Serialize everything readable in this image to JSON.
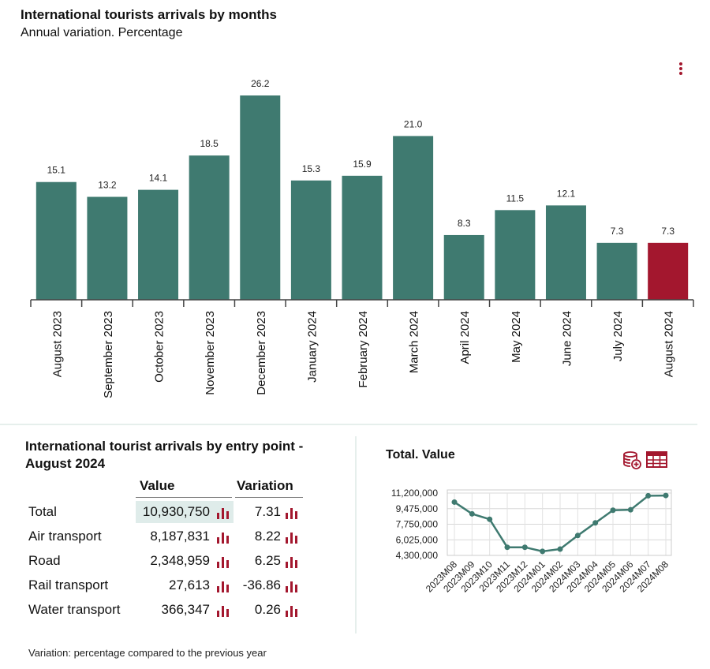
{
  "bar_section": {
    "title": "International tourists arrivals by months",
    "subtitle": "Annual variation. Percentage",
    "menu_icon": "vertical-dots-icon"
  },
  "table_section": {
    "title": "International tourist arrivals by entry point - August 2024",
    "col_value": "Value",
    "col_variation": "Variation",
    "rows": [
      {
        "label": "Total",
        "value": "10,930,750",
        "variation": "7.31"
      },
      {
        "label": "Air transport",
        "value": "8,187,831",
        "variation": "8.22"
      },
      {
        "label": "Road",
        "value": "2,348,959",
        "variation": "6.25"
      },
      {
        "label": "Rail transport",
        "value": "27,613",
        "variation": "-36.86"
      },
      {
        "label": "Water transport",
        "value": "366,347",
        "variation": "0.26"
      }
    ],
    "row_icon": "mini-bar-chart-icon",
    "footnote": "Variation: percentage compared to the previous year"
  },
  "line_section": {
    "title": "Total. Value",
    "icons": [
      "database-add-icon",
      "table-icon"
    ]
  },
  "colors": {
    "bar": "#3f7a70",
    "bar_highlight": "#a3172e",
    "line": "#3f7a70",
    "icon": "#a3172e",
    "axis": "#444444"
  },
  "chart_data": [
    {
      "type": "bar",
      "title": "International tourists arrivals by months",
      "subtitle": "Annual variation. Percentage",
      "categories": [
        "August 2023",
        "September 2023",
        "October 2023",
        "November 2023",
        "December 2023",
        "January 2024",
        "February 2024",
        "March 2024",
        "April 2024",
        "May 2024",
        "June 2024",
        "July 2024",
        "August 2024"
      ],
      "values": [
        15.1,
        13.2,
        14.1,
        18.5,
        26.2,
        15.3,
        15.9,
        21.0,
        8.3,
        11.5,
        12.1,
        7.3,
        7.3
      ],
      "labels": [
        "15.1",
        "13.2",
        "14.1",
        "18.5",
        "26.2",
        "15.3",
        "15.9",
        "21.0",
        "8.3",
        "11.5",
        "12.1",
        "7.3",
        "7.3"
      ],
      "highlight_index": 12,
      "ylim": [
        0,
        26.2
      ]
    },
    {
      "type": "line",
      "title": "Total. Value",
      "x": [
        "2023M08",
        "2023M09",
        "2023M10",
        "2023M11",
        "2023M12",
        "2024M01",
        "2024M02",
        "2024M03",
        "2024M04",
        "2024M05",
        "2024M06",
        "2024M07",
        "2024M08"
      ],
      "values": [
        10200000,
        8900000,
        8300000,
        5200000,
        5200000,
        4750000,
        5000000,
        6500000,
        7900000,
        9300000,
        9350000,
        10900000,
        10930750
      ],
      "yticks": [
        4300000,
        6025000,
        7750000,
        9475000,
        11200000
      ],
      "ytick_labels": [
        "4,300,000",
        "6,025,000",
        "7,750,000",
        "9,475,000",
        "11,200,000"
      ],
      "ylim": [
        4300000,
        11200000
      ],
      "grid": true
    }
  ]
}
